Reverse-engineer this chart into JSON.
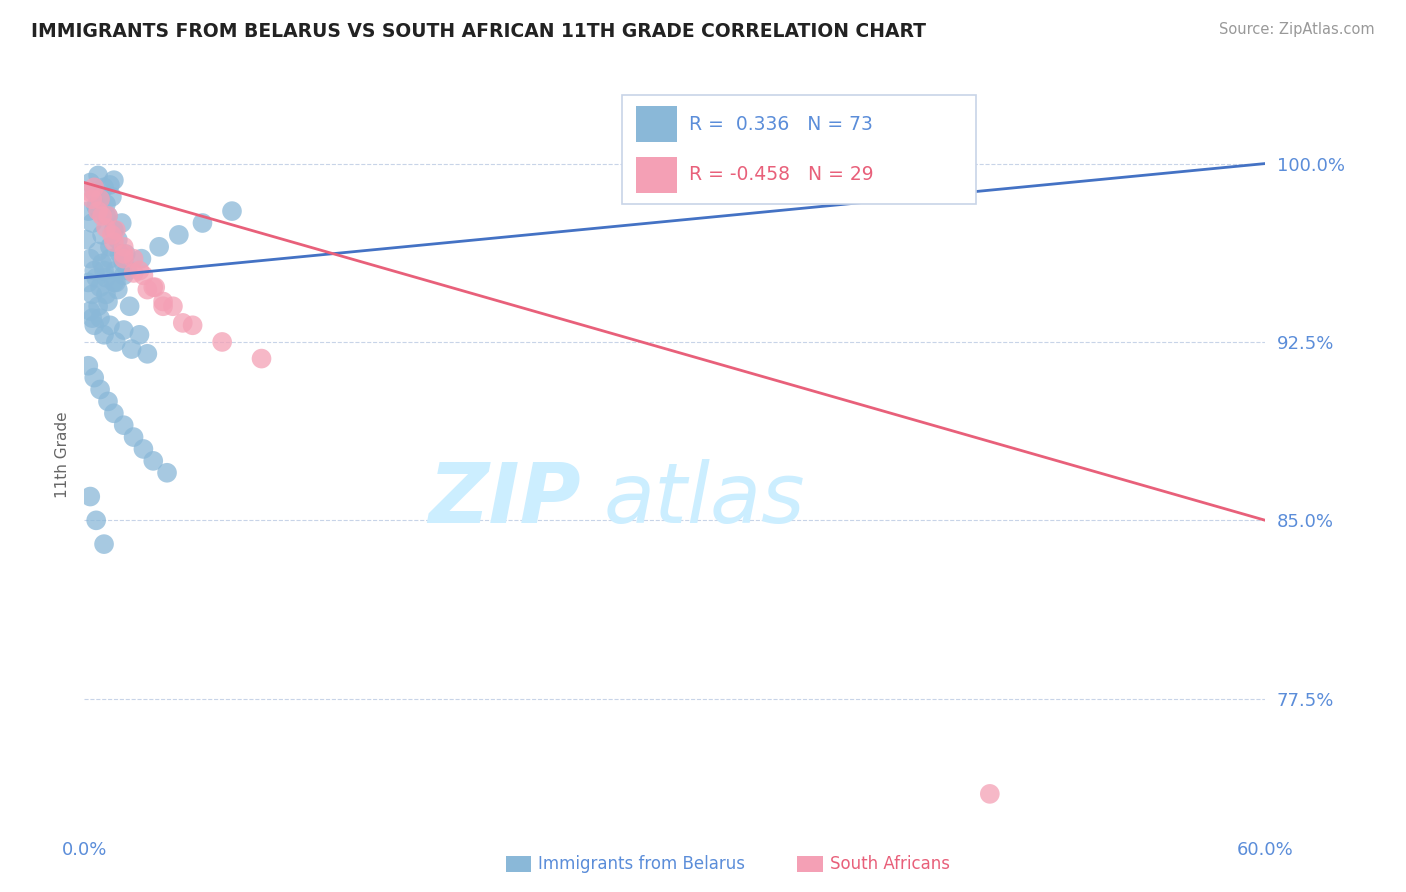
{
  "title": "IMMIGRANTS FROM BELARUS VS SOUTH AFRICAN 11TH GRADE CORRELATION CHART",
  "source": "Source: ZipAtlas.com",
  "ylabel_ticks": [
    77.5,
    85.0,
    92.5,
    100.0
  ],
  "ylabel_tick_labels": [
    "77.5%",
    "85.0%",
    "92.5%",
    "100.0%"
  ],
  "xmin": 0.0,
  "xmax": 60.0,
  "ymin": 72.0,
  "ymax": 103.5,
  "legend_label1": "Immigrants from Belarus",
  "legend_label2": "South Africans",
  "r1": 0.336,
  "n1": 73,
  "r2": -0.458,
  "n2": 29,
  "color1": "#8AB8D8",
  "color2": "#F4A0B5",
  "line_color1": "#4472C4",
  "line_color2": "#E8607A",
  "watermark": "ZIPatlas",
  "watermark_color": "#CCEEFF",
  "background_color": "#FFFFFF",
  "grid_color": "#C8D4E8",
  "axis_label_color": "#5B8DD9",
  "title_color": "#222222",
  "scatter1_x": [
    0.3,
    0.5,
    0.7,
    0.8,
    1.0,
    1.1,
    1.2,
    1.3,
    1.4,
    1.5,
    0.2,
    0.4,
    0.6,
    0.9,
    1.1,
    1.3,
    1.5,
    1.7,
    1.9,
    2.1,
    0.1,
    0.3,
    0.5,
    0.7,
    0.9,
    1.1,
    1.3,
    1.6,
    1.8,
    2.0,
    0.2,
    0.4,
    0.6,
    0.8,
    1.0,
    1.2,
    1.5,
    1.7,
    2.0,
    2.3,
    0.3,
    0.5,
    0.8,
    1.0,
    1.3,
    1.6,
    2.0,
    2.4,
    2.8,
    3.2,
    0.2,
    0.5,
    0.8,
    1.2,
    1.5,
    2.0,
    2.5,
    3.0,
    3.5,
    4.2,
    0.4,
    0.7,
    1.1,
    1.6,
    2.2,
    2.9,
    3.8,
    4.8,
    6.0,
    7.5,
    0.3,
    0.6,
    1.0
  ],
  "scatter1_y": [
    99.2,
    98.8,
    99.5,
    98.5,
    99.0,
    98.3,
    97.8,
    99.1,
    98.6,
    99.3,
    98.0,
    97.5,
    98.2,
    97.0,
    97.8,
    96.5,
    97.2,
    96.8,
    97.5,
    96.2,
    96.8,
    96.0,
    95.5,
    96.3,
    95.8,
    95.2,
    96.0,
    95.5,
    96.2,
    95.8,
    95.0,
    94.5,
    95.2,
    94.8,
    95.5,
    94.2,
    95.0,
    94.7,
    95.3,
    94.0,
    93.8,
    93.2,
    93.5,
    92.8,
    93.2,
    92.5,
    93.0,
    92.2,
    92.8,
    92.0,
    91.5,
    91.0,
    90.5,
    90.0,
    89.5,
    89.0,
    88.5,
    88.0,
    87.5,
    87.0,
    93.5,
    94.0,
    94.5,
    95.0,
    95.5,
    96.0,
    96.5,
    97.0,
    97.5,
    98.0,
    86.0,
    85.0,
    84.0
  ],
  "scatter2_x": [
    0.5,
    0.8,
    1.2,
    1.6,
    2.0,
    2.5,
    3.0,
    3.5,
    4.0,
    0.3,
    0.7,
    1.1,
    1.5,
    2.0,
    2.5,
    3.2,
    4.0,
    5.0,
    0.4,
    0.9,
    1.4,
    2.0,
    2.8,
    3.6,
    4.5,
    5.5,
    7.0,
    9.0,
    46.0
  ],
  "scatter2_y": [
    99.0,
    98.5,
    97.8,
    97.2,
    96.5,
    96.0,
    95.3,
    94.8,
    94.2,
    98.8,
    98.0,
    97.3,
    96.7,
    96.0,
    95.4,
    94.7,
    94.0,
    93.3,
    98.5,
    97.8,
    97.0,
    96.2,
    95.5,
    94.8,
    94.0,
    93.2,
    92.5,
    91.8,
    73.5
  ],
  "trendline1_x": [
    0.0,
    60.0
  ],
  "trendline1_y": [
    95.2,
    100.0
  ],
  "trendline2_x": [
    0.0,
    60.0
  ],
  "trendline2_y": [
    99.2,
    85.0
  ]
}
